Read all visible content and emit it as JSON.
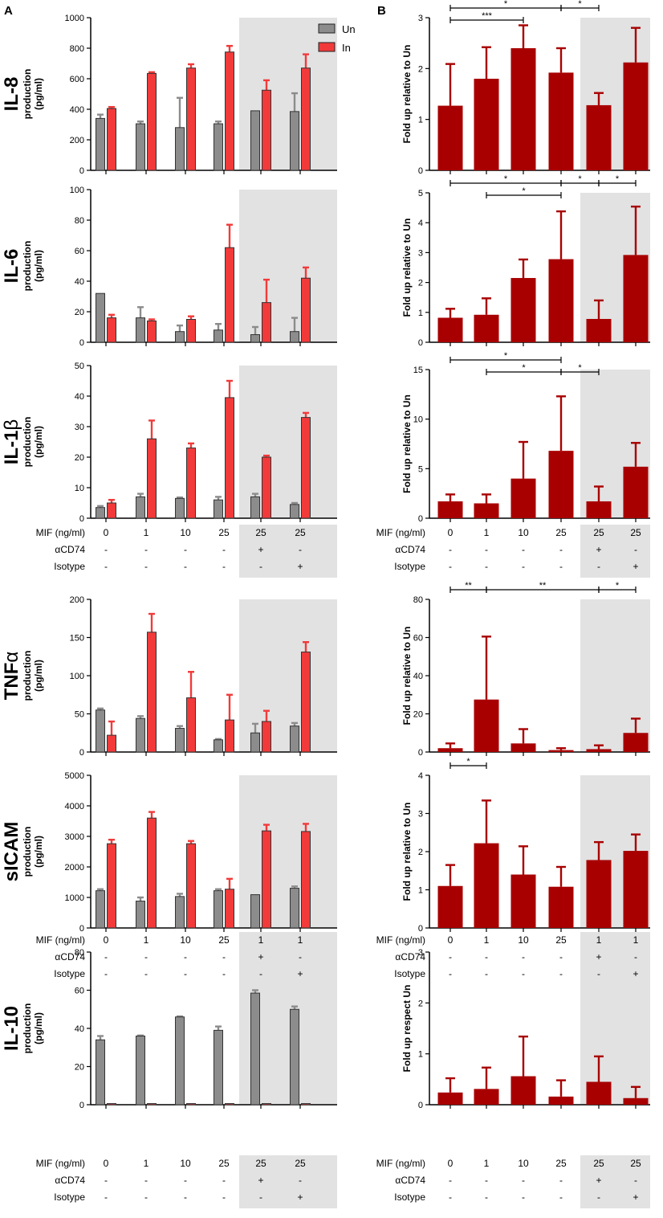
{
  "panel_labels": {
    "a": "A",
    "b": "B"
  },
  "colors": {
    "un": "#8c8c8c",
    "in": "#f23a3a",
    "fold": "#a80000",
    "shade": "#e2e2e2",
    "border": "#222222"
  },
  "legend": {
    "un": "Un",
    "in": "In"
  },
  "conditions": {
    "mif_label": "MIF (ng/ml)",
    "cd74_label": "αCD74",
    "iso_label": "Isotype",
    "mif_standard": [
      "0",
      "1",
      "10",
      "25",
      "25",
      "25"
    ],
    "mif_sicam": [
      "0",
      "1",
      "10",
      "25",
      "1",
      "1"
    ],
    "cd74_values": [
      "-",
      "-",
      "-",
      "-",
      "+",
      "-"
    ],
    "iso_values": [
      "-",
      "-",
      "-",
      "-",
      "-",
      "+"
    ]
  },
  "rows": [
    {
      "cytokine": "IL-8",
      "title_tail": "",
      "sub1": "production",
      "sub2": "(pg/ml)"
    },
    {
      "cytokine": "IL-6",
      "title_tail": "",
      "sub1": "production",
      "sub2": "(pg/ml)"
    },
    {
      "cytokine": "IL-1",
      "title_tail": "β",
      "sub1": "production",
      "sub2": "(pg/ml)"
    },
    {
      "cytokine": "TNF",
      "title_tail": "α",
      "sub1": "production",
      "sub2": "(pg/ml)"
    },
    {
      "cytokine": "sICAM",
      "title_tail": "",
      "sub1": "production",
      "sub2": "(pg/ml)"
    },
    {
      "cytokine": "IL-10",
      "title_tail": "",
      "sub1": "production",
      "sub2": "(pg/ml)"
    }
  ],
  "chart_data": [
    {
      "id": "IL-8-A",
      "type": "bar",
      "title": "IL-8",
      "ylabel": "production (pg/ml)",
      "ylim": [
        0,
        1000
      ],
      "yticks": [
        0,
        200,
        400,
        600,
        800,
        1000
      ],
      "categories": [
        "0",
        "1",
        "10",
        "25",
        "25 + αCD74",
        "25 + Isotype"
      ],
      "series": [
        {
          "name": "Un",
          "values": [
            340,
            305,
            280,
            305,
            390,
            385
          ],
          "errors": [
            25,
            15,
            195,
            15,
            0,
            120
          ]
        },
        {
          "name": "In",
          "values": [
            405,
            635,
            670,
            775,
            525,
            670
          ],
          "errors": [
            10,
            8,
            25,
            40,
            65,
            90
          ]
        }
      ]
    },
    {
      "id": "IL-8-B",
      "type": "bar",
      "title": "IL-8",
      "ylabel": "Fold up relative to Un",
      "ylim": [
        0,
        3
      ],
      "yticks": [
        0,
        1,
        2,
        3
      ],
      "categories": [
        "0",
        "1",
        "10",
        "25",
        "25 + αCD74",
        "25 + Isotype"
      ],
      "series": [
        {
          "name": "Fold",
          "values": [
            1.27,
            1.8,
            2.4,
            1.92,
            1.28,
            2.12
          ],
          "errors": [
            0.82,
            0.62,
            0.45,
            0.48,
            0.24,
            0.68
          ]
        }
      ],
      "significance": [
        {
          "from": 0,
          "to": 3,
          "label": "*",
          "level": 0
        },
        {
          "from": 3,
          "to": 4,
          "label": "*",
          "level": 0
        },
        {
          "from": 0,
          "to": 2,
          "label": "***",
          "level": 1
        }
      ]
    },
    {
      "id": "IL-6-A",
      "type": "bar",
      "title": "IL-6",
      "ylabel": "production (pg/ml)",
      "ylim": [
        0,
        100
      ],
      "yticks": [
        0,
        20,
        40,
        60,
        80,
        100
      ],
      "categories": [
        "0",
        "1",
        "10",
        "25",
        "25 + αCD74",
        "25 + Isotype"
      ],
      "series": [
        {
          "name": "Un",
          "values": [
            32,
            16,
            7,
            8,
            5,
            7
          ],
          "errors": [
            0,
            7,
            4,
            4,
            5,
            9
          ]
        },
        {
          "name": "In",
          "values": [
            16,
            14,
            15,
            62,
            26,
            42
          ],
          "errors": [
            2,
            1,
            2,
            15,
            15,
            7
          ]
        }
      ]
    },
    {
      "id": "IL-6-B",
      "type": "bar",
      "title": "IL-6",
      "ylabel": "Fold up relative to Un",
      "ylim": [
        0,
        5
      ],
      "yticks": [
        0,
        1,
        2,
        3,
        4,
        5
      ],
      "categories": [
        "0",
        "1",
        "10",
        "25",
        "25 + αCD74",
        "25 + Isotype"
      ],
      "series": [
        {
          "name": "Fold",
          "values": [
            0.82,
            0.92,
            2.15,
            2.78,
            0.78,
            2.92
          ],
          "errors": [
            0.3,
            0.55,
            0.62,
            1.6,
            0.62,
            1.62
          ]
        }
      ],
      "significance": [
        {
          "from": 0,
          "to": 3,
          "label": "*",
          "level": 0
        },
        {
          "from": 3,
          "to": 4,
          "label": "*",
          "level": 0
        },
        {
          "from": 4,
          "to": 5,
          "label": "*",
          "level": 0
        },
        {
          "from": 1,
          "to": 3,
          "label": "*",
          "level": 1
        }
      ]
    },
    {
      "id": "IL-1b-A",
      "type": "bar",
      "title": "IL-1β",
      "ylabel": "production (pg/ml)",
      "ylim": [
        0,
        50
      ],
      "yticks": [
        0,
        10,
        20,
        30,
        40,
        50
      ],
      "categories": [
        "0",
        "1",
        "10",
        "25",
        "25 + αCD74",
        "25 + Isotype"
      ],
      "series": [
        {
          "name": "Un",
          "values": [
            3.5,
            7,
            6.5,
            6,
            7,
            4.5
          ],
          "errors": [
            0.5,
            1,
            0.3,
            1,
            1,
            0.5
          ]
        },
        {
          "name": "In",
          "values": [
            5,
            26,
            23,
            39.5,
            20,
            33
          ],
          "errors": [
            1,
            6,
            1.5,
            5.5,
            0.5,
            1.5
          ]
        }
      ]
    },
    {
      "id": "IL-1b-B",
      "type": "bar",
      "title": "IL-1β",
      "ylabel": "Fold up relative to Un",
      "ylim": [
        0,
        15
      ],
      "yticks": [
        0,
        5,
        10,
        15
      ],
      "categories": [
        "0",
        "1",
        "10",
        "25",
        "25 + αCD74",
        "25 + Isotype"
      ],
      "series": [
        {
          "name": "Fold",
          "values": [
            1.7,
            1.5,
            4,
            6.8,
            1.7,
            5.2
          ],
          "errors": [
            0.7,
            0.9,
            3.7,
            5.5,
            1.5,
            2.4
          ]
        }
      ],
      "significance": [
        {
          "from": 0,
          "to": 3,
          "label": "*",
          "level": 0
        },
        {
          "from": 3,
          "to": 4,
          "label": "*",
          "level": 1
        },
        {
          "from": 1,
          "to": 3,
          "label": "*",
          "level": 1
        }
      ]
    },
    {
      "id": "TNFa-A",
      "type": "bar",
      "title": "TNFα",
      "ylabel": "production (pg/ml)",
      "ylim": [
        0,
        200
      ],
      "yticks": [
        0,
        50,
        100,
        150,
        200
      ],
      "categories": [
        "0",
        "1",
        "10",
        "25",
        "25 + αCD74",
        "25 + Isotype"
      ],
      "series": [
        {
          "name": "Un",
          "values": [
            55,
            44,
            31,
            16,
            25,
            34
          ],
          "errors": [
            2,
            3,
            3,
            1,
            12,
            4
          ]
        },
        {
          "name": "In",
          "values": [
            22,
            157,
            71,
            42,
            40,
            131
          ],
          "errors": [
            18,
            24,
            34,
            33,
            14,
            13
          ]
        }
      ]
    },
    {
      "id": "TNFa-B",
      "type": "bar",
      "title": "TNFα",
      "ylabel": "Fold up relative to Un",
      "ylim": [
        0,
        80
      ],
      "yticks": [
        0,
        20,
        40,
        60,
        80
      ],
      "categories": [
        "0",
        "1",
        "10",
        "25",
        "25 + αCD74",
        "25 + Isotype"
      ],
      "series": [
        {
          "name": "Fold",
          "values": [
            2,
            27.5,
            4.5,
            1,
            1.5,
            10
          ],
          "errors": [
            2.5,
            33,
            7.5,
            1,
            2,
            7.5
          ]
        }
      ],
      "significance": [
        {
          "from": 0,
          "to": 1,
          "label": "**",
          "level": 0
        },
        {
          "from": 1,
          "to": 4,
          "label": "**",
          "level": 0
        },
        {
          "from": 4,
          "to": 5,
          "label": "*",
          "level": 0
        }
      ]
    },
    {
      "id": "sICAM-A",
      "type": "bar",
      "title": "sICAM",
      "ylabel": "production (pg/ml)",
      "ylim": [
        0,
        5000
      ],
      "yticks": [
        0,
        1000,
        2000,
        3000,
        4000,
        5000
      ],
      "categories": [
        "0",
        "1",
        "10",
        "25",
        "1 + αCD74",
        "1 + Isotype"
      ],
      "series": [
        {
          "name": "Un",
          "values": [
            1220,
            880,
            1030,
            1220,
            1090,
            1300
          ],
          "errors": [
            50,
            120,
            90,
            50,
            0,
            60
          ]
        },
        {
          "name": "In",
          "values": [
            2760,
            3600,
            2760,
            1270,
            3180,
            3160
          ],
          "errors": [
            130,
            200,
            90,
            340,
            200,
            250
          ]
        }
      ]
    },
    {
      "id": "sICAM-B",
      "type": "bar",
      "title": "sICAM",
      "ylabel": "Fold up relative to Un",
      "ylim": [
        0,
        4
      ],
      "yticks": [
        0,
        1,
        2,
        3,
        4
      ],
      "categories": [
        "0",
        "1",
        "10",
        "25",
        "1 + αCD74",
        "1 + Isotype"
      ],
      "series": [
        {
          "name": "Fold",
          "values": [
            1.1,
            2.22,
            1.4,
            1.08,
            1.78,
            2.02
          ],
          "errors": [
            0.55,
            1.12,
            0.74,
            0.52,
            0.47,
            0.43
          ]
        }
      ],
      "significance": [
        {
          "from": 0,
          "to": 1,
          "label": "*",
          "level": 0
        }
      ]
    },
    {
      "id": "IL-10-A",
      "type": "bar",
      "title": "IL-10",
      "ylabel": "production (pg/ml)",
      "ylim": [
        0,
        80
      ],
      "yticks": [
        0,
        20,
        40,
        60,
        80
      ],
      "categories": [
        "0",
        "1",
        "10",
        "25",
        "25 + αCD74",
        "25 + Isotype"
      ],
      "series": [
        {
          "name": "Un",
          "values": [
            34,
            36,
            46,
            39,
            58.5,
            50
          ],
          "errors": [
            2,
            0.3,
            0.3,
            2,
            1.5,
            1.5
          ]
        },
        {
          "name": "In",
          "values": [
            0.6,
            0.6,
            0.6,
            0.6,
            0.6,
            0.6
          ],
          "errors": [
            0,
            0,
            0,
            0,
            0,
            0
          ]
        }
      ]
    },
    {
      "id": "IL-10-B",
      "type": "bar",
      "title": "IL-10",
      "ylabel": "Fold up respect Un",
      "ylim": [
        0,
        3
      ],
      "yticks": [
        0,
        1,
        2,
        3
      ],
      "categories": [
        "0",
        "1",
        "10",
        "25",
        "25 + αCD74",
        "25 + Isotype"
      ],
      "series": [
        {
          "name": "Fold",
          "values": [
            0.24,
            0.31,
            0.56,
            0.16,
            0.45,
            0.13
          ],
          "errors": [
            0.28,
            0.42,
            0.78,
            0.32,
            0.5,
            0.22
          ]
        }
      ]
    }
  ]
}
